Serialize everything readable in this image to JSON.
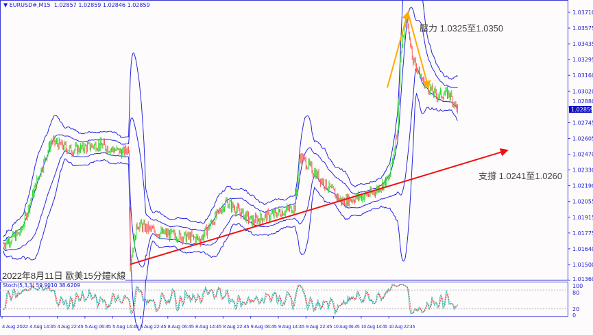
{
  "header": {
    "symbol": "EURUSD#,M15",
    "ohlc": "1.02857 1.02859 1.02846 1.02859"
  },
  "caption": "2022年8月11日 歐美15分鐘K線",
  "annotations": {
    "resistance": "壓力 1.0325至1.0350",
    "support": "支撐 1.0241至1.0260"
  },
  "colors": {
    "axis": "#3a3ad8",
    "up": "#33dd33",
    "down": "#ff5a5a",
    "band": "#2525e0",
    "support": "#ee1111",
    "resistance": "#ffaa00",
    "stochK": "#40c8c0",
    "stochD": "#ff3030"
  },
  "chart_data": {
    "type": "candlestick",
    "symbol": "EURUSD#",
    "timeframe": "M15",
    "ylim": [
      1.0136,
      1.0371
    ],
    "y_ticks": [
      "1.03710",
      "1.03575",
      "1.03435",
      "1.03295",
      "1.03160",
      "1.03020",
      "1.02880",
      "1.02745",
      "1.02605",
      "1.02470",
      "1.02330",
      "1.02190",
      "1.02055",
      "1.01915",
      "1.01775",
      "1.01640",
      "1.01500",
      "1.01360"
    ],
    "current_price": "1.02859",
    "x_ticks": [
      "4 Aug 2022",
      "4 Aug 14:45",
      "4 Aug 22:45",
      "5 Aug 06:45",
      "5 Aug 14:45",
      "5 Aug 22:45",
      "8 Aug 06:45",
      "8 Aug 14:45",
      "8 Aug 22:45",
      "9 Aug 06:45",
      "9 Aug 14:45",
      "9 Aug 22:45",
      "10 Aug 06:45",
      "10 Aug 14:45",
      "10 Aug 22:45"
    ],
    "price_path": [
      [
        0,
        1.0168
      ],
      [
        20,
        1.0178
      ],
      [
        40,
        1.0225
      ],
      [
        56,
        1.0258
      ],
      [
        80,
        1.025
      ],
      [
        110,
        1.0255
      ],
      [
        140,
        1.0248
      ],
      [
        146,
        1.0252
      ],
      [
        148,
        1.015
      ],
      [
        156,
        1.0185
      ],
      [
        180,
        1.0178
      ],
      [
        230,
        1.0172
      ],
      [
        260,
        1.0205
      ],
      [
        290,
        1.0188
      ],
      [
        320,
        1.0195
      ],
      [
        340,
        1.02
      ],
      [
        346,
        1.0245
      ],
      [
        370,
        1.0225
      ],
      [
        395,
        1.0205
      ],
      [
        430,
        1.0212
      ],
      [
        450,
        1.0225
      ],
      [
        460,
        1.027
      ],
      [
        463,
        1.033
      ],
      [
        470,
        1.0368
      ],
      [
        478,
        1.033
      ],
      [
        490,
        1.031
      ],
      [
        505,
        1.0298
      ],
      [
        520,
        1.03
      ],
      [
        530,
        1.0286
      ]
    ],
    "stochastic": {
      "label": "Stoch(5,3,3) 59.9010 38.6209",
      "levels": [
        20,
        80
      ],
      "scale": [
        "100",
        "80",
        "20",
        "0"
      ]
    },
    "support_line": {
      "from": [
        148,
        1.015
      ],
      "to": [
        588,
        1.025
      ]
    },
    "resistance_arrows": [
      {
        "from": [
          448,
          1.0305
        ],
        "to": [
          472,
          1.0371
        ]
      },
      {
        "from": [
          472,
          1.0371
        ],
        "to": [
          496,
          1.0305
        ]
      }
    ]
  }
}
